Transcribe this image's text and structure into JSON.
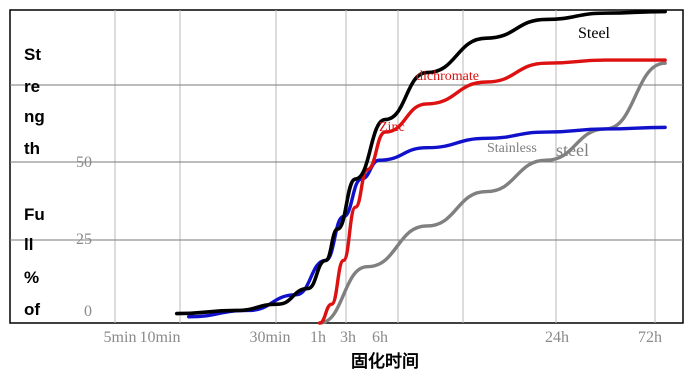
{
  "chart_data": {
    "type": "line",
    "title": "",
    "ylabel": [
      "St",
      "re",
      "ng",
      "th",
      "Fu",
      "ll",
      "%",
      "of"
    ],
    "xlabel": "固化时间",
    "x_ticks": [
      "5min",
      "10min",
      "30min",
      "1h",
      "3h",
      "6h",
      "24h",
      "72h"
    ],
    "y_ticks": [
      "0",
      "25",
      "50"
    ],
    "ylim": [
      0,
      100
    ],
    "grid": true,
    "series": [
      {
        "name": "Steel",
        "color": "#000000",
        "points": [
          [
            28,
            3
          ],
          [
            38,
            4
          ],
          [
            45,
            6
          ],
          [
            50,
            11
          ],
          [
            53,
            20
          ],
          [
            55,
            30
          ],
          [
            58,
            46
          ],
          [
            63,
            65
          ],
          [
            70,
            80
          ],
          [
            80,
            91
          ],
          [
            90,
            97
          ],
          [
            100,
            99
          ],
          [
            110,
            99.5
          ]
        ]
      },
      {
        "name": "dichromate Zinc",
        "color": "#dd1111",
        "points": [
          [
            52,
            0
          ],
          [
            54,
            6
          ],
          [
            56,
            20
          ],
          [
            58,
            37
          ],
          [
            60,
            49
          ],
          [
            63,
            61
          ],
          [
            70,
            70
          ],
          [
            80,
            77
          ],
          [
            90,
            83
          ],
          [
            100,
            84
          ],
          [
            110,
            84
          ]
        ]
      },
      {
        "name": "",
        "color": "#1111cc",
        "points": [
          [
            30,
            2
          ],
          [
            40,
            4
          ],
          [
            48,
            9
          ],
          [
            53,
            20
          ],
          [
            56,
            34
          ],
          [
            59,
            46
          ],
          [
            62,
            52
          ],
          [
            70,
            56
          ],
          [
            80,
            59
          ],
          [
            90,
            61
          ],
          [
            100,
            62
          ],
          [
            110,
            62.5
          ]
        ]
      },
      {
        "name": "Stainless steel",
        "color": "#808080",
        "points": [
          [
            52,
            0
          ],
          [
            60,
            18
          ],
          [
            70,
            31
          ],
          [
            80,
            42
          ],
          [
            90,
            52
          ],
          [
            100,
            62
          ],
          [
            110,
            83
          ]
        ]
      }
    ],
    "annotations": [
      {
        "text": "Steel",
        "color": "#000000"
      },
      {
        "text": "dichromate",
        "color": "#dd1111"
      },
      {
        "text": "Zinc",
        "color": "#dd1111"
      },
      {
        "text": "Stainless",
        "color": "#808080"
      },
      {
        "text": "steel",
        "color": "#808080"
      }
    ]
  }
}
